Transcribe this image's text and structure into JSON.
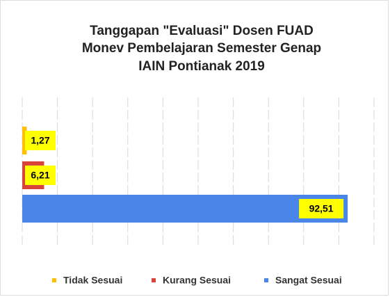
{
  "chart_data": {
    "type": "barh",
    "title": [
      "Tanggapan \"Evaluasi\" Dosen FUAD",
      "Monev Pembelajaran Semester Genap",
      "IAIN Pontianak 2019"
    ],
    "series": [
      {
        "name": "Tidak Sesuai",
        "color": "#ffc000",
        "values": [
          1.27
        ],
        "value_labels": [
          "1,27"
        ]
      },
      {
        "name": "Kurang Sesuai",
        "color": "#d8433a",
        "values": [
          6.21
        ],
        "value_labels": [
          "6,21"
        ]
      },
      {
        "name": "Sangat Sesuai",
        "color": "#4a86e8",
        "values": [
          92.51
        ],
        "value_labels": [
          "92,51"
        ]
      }
    ],
    "xlim": [
      0,
      100
    ],
    "xticks": [
      0,
      10,
      20,
      30,
      40,
      50,
      60,
      70,
      80,
      90,
      100
    ],
    "grid": true,
    "legend": "bottom"
  }
}
